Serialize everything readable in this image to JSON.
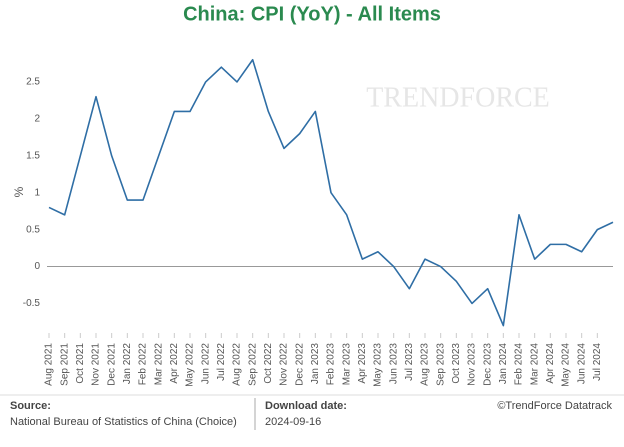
{
  "chart_data": {
    "type": "line",
    "title": "China: CPI (YoY) - All Items",
    "y_label": "%",
    "watermark": "TRENDFORCE",
    "categories": [
      "Aug 2021",
      "Sep 2021",
      "Oct 2021",
      "Nov 2021",
      "Dec 2021",
      "Jan 2022",
      "Feb 2022",
      "Mar 2022",
      "Apr 2022",
      "May 2022",
      "Jun 2022",
      "Jul 2022",
      "Aug 2022",
      "Sep 2022",
      "Oct 2022",
      "Nov 2022",
      "Dec 2022",
      "Jan 2023",
      "Feb 2023",
      "Mar 2023",
      "Apr 2023",
      "May 2023",
      "Jun 2023",
      "Jul 2023",
      "Aug 2023",
      "Sep 2023",
      "Oct 2023",
      "Nov 2023",
      "Dec 2023",
      "Jan 2024",
      "Feb 2024",
      "Mar 2024",
      "Apr 2024",
      "May 2024",
      "Jun 2024",
      "Jul 2024",
      null
    ],
    "values": [
      0.8,
      0.7,
      1.5,
      2.3,
      1.5,
      0.9,
      0.9,
      1.5,
      2.1,
      2.1,
      2.5,
      2.7,
      2.5,
      2.8,
      2.1,
      1.6,
      1.8,
      2.1,
      1.0,
      0.7,
      0.1,
      0.2,
      0.0,
      -0.3,
      0.1,
      0.0,
      -0.2,
      -0.5,
      -0.3,
      -0.8,
      0.7,
      0.1,
      0.3,
      0.3,
      0.2,
      0.5,
      0.6
    ],
    "color": "#2f6ea5",
    "ylim": [
      -0.9,
      3.0
    ],
    "yticks": [
      -0.5,
      0,
      0.5,
      1,
      1.5,
      2,
      2.5
    ],
    "grid": false
  },
  "footer": {
    "source_label": "Source:",
    "source": "National Bureau of Statistics of China (Choice)",
    "date_label": "Download date:",
    "date": "2024-09-16",
    "copyright": "©TrendForce Datatrack"
  }
}
